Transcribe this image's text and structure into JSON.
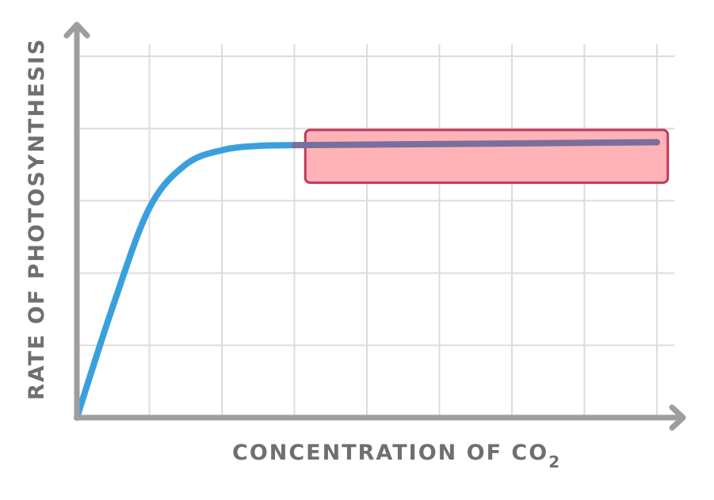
{
  "chart_data": {
    "type": "line",
    "title": "",
    "xlabel": "CONCENTRATION OF CO",
    "xlabel_subscript": "2",
    "ylabel": "RATE OF PHOTOSYNTHESIS",
    "xlim": [
      0,
      8
    ],
    "ylim": [
      0,
      5
    ],
    "grid": true,
    "series": [
      {
        "color": "#3aa0dd",
        "x": [
          0,
          0.5,
          1,
          1.5,
          2,
          2.5,
          3
        ],
        "y": [
          0,
          1.55,
          2.9,
          3.5,
          3.7,
          3.76,
          3.77
        ]
      },
      {
        "color": "#7a6f9c",
        "x": [
          3,
          8
        ],
        "y": [
          3.77,
          3.81
        ]
      }
    ],
    "annotations": [
      {
        "type": "highlight-box",
        "x_range": [
          3.15,
          8.15
        ],
        "y_range": [
          3.25,
          3.98
        ],
        "fill": "#ffb3b6",
        "stroke": "#c0395e"
      }
    ]
  }
}
